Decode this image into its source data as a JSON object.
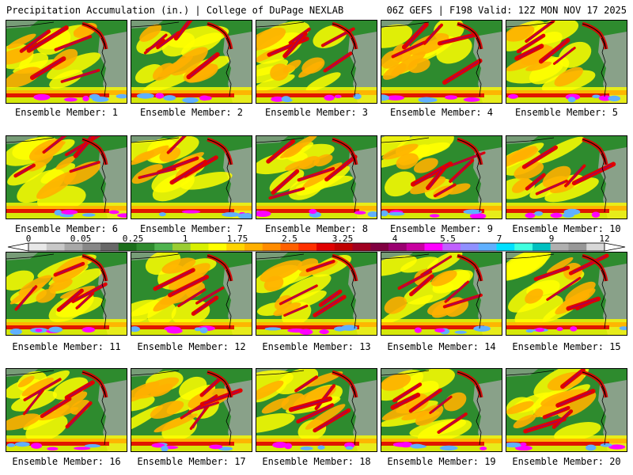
{
  "header": {
    "title": "Precipitation Accumulation (in.) | College of DuPage NEXLAB",
    "run_info": "06Z GEFS | F198 Valid: 12Z MON NOV 17 2025"
  },
  "members": [
    {
      "label": "Ensemble Member:",
      "number": "1"
    },
    {
      "label": "Ensemble Member:",
      "number": "2"
    },
    {
      "label": "Ensemble Member:",
      "number": "3"
    },
    {
      "label": "Ensemble Member:",
      "number": "4"
    },
    {
      "label": "Ensemble Member:",
      "number": "5"
    },
    {
      "label": "Ensemble Member:",
      "number": "6"
    },
    {
      "label": "Ensemble Member:",
      "number": "7"
    },
    {
      "label": "Ensemble Member:",
      "number": "8"
    },
    {
      "label": "Ensemble Member:",
      "number": "9"
    },
    {
      "label": "Ensemble Member:",
      "number": "10"
    },
    {
      "label": "Ensemble Member:",
      "number": "11"
    },
    {
      "label": "Ensemble Member:",
      "number": "12"
    },
    {
      "label": "Ensemble Member:",
      "number": "13"
    },
    {
      "label": "Ensemble Member:",
      "number": "14"
    },
    {
      "label": "Ensemble Member:",
      "number": "15"
    },
    {
      "label": "Ensemble Member:",
      "number": "16"
    },
    {
      "label": "Ensemble Member:",
      "number": "17"
    },
    {
      "label": "Ensemble Member:",
      "number": "18"
    },
    {
      "label": "Ensemble Member:",
      "number": "19"
    },
    {
      "label": "Ensemble Member:",
      "number": "20"
    }
  ],
  "colorbar": {
    "tick_labels": [
      "0",
      "0.05",
      "0.25",
      "1",
      "1.75",
      "2.5",
      "3.25",
      "4",
      "5.5",
      "7",
      "9",
      "12"
    ],
    "colors": [
      "#e8e8e8",
      "#c8c8c8",
      "#a8a8a8",
      "#888888",
      "#686868",
      "#1a6e1a",
      "#2e8b2e",
      "#4fb34f",
      "#9acd32",
      "#d8f000",
      "#ffff00",
      "#ffd400",
      "#ffb000",
      "#ff8c00",
      "#ff6000",
      "#ff3000",
      "#e00000",
      "#c00000",
      "#a00020",
      "#800040",
      "#9a0070",
      "#c800a0",
      "#ff00ff",
      "#c060ff",
      "#9090ff",
      "#60b0ff",
      "#00e0ff",
      "#40ffe0",
      "#00c0c0",
      "#b0b0b0",
      "#989898",
      "#d8d8d8"
    ]
  },
  "map_colors": {
    "background_green": "#2e8b2e",
    "yellow": "#ffff00",
    "orange": "#ffb000",
    "red": "#e00000",
    "purple": "#a00060",
    "magenta": "#ff00ff",
    "cyan": "#60b0ff",
    "gray": "#a8a8a8",
    "coastline": "#000000"
  }
}
